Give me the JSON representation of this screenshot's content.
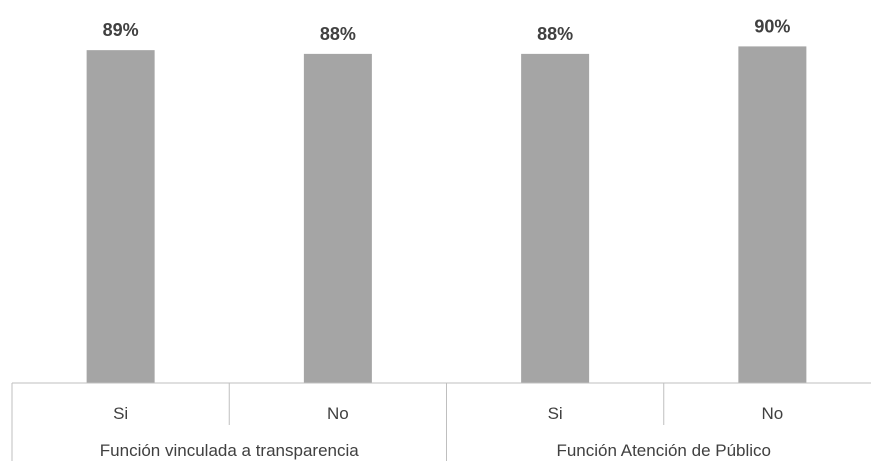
{
  "chart_data": {
    "type": "bar",
    "categories": [
      "Si",
      "No",
      "Si",
      "No"
    ],
    "groups": [
      {
        "label": "Función vinculada a transparencia",
        "categories": [
          "Si",
          "No"
        ]
      },
      {
        "label": "Función Atención de Público",
        "categories": [
          "Si",
          "No"
        ]
      }
    ],
    "values": [
      89,
      88,
      88,
      90
    ],
    "data_labels": [
      "89%",
      "88%",
      "88%",
      "90%"
    ],
    "ylim": [
      0,
      100
    ],
    "grid": false,
    "colors": {
      "bar": "#a5a5a5",
      "axis": "#bfbfbf",
      "text": "#404040"
    }
  }
}
